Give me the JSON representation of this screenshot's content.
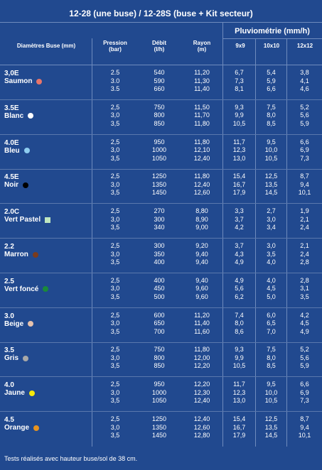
{
  "title": "12-28 (une buse) / 12-28S (buse + Kit secteur)",
  "headers": {
    "diametres": "Diamètres Buse (mm)",
    "pression": "Pression",
    "pression_unit": "(bar)",
    "debit": "Débit",
    "debit_unit": "(l/h)",
    "rayon": "Rayon",
    "rayon_unit": "(m)",
    "pluviometrie": "Pluviométrie (mm/h)",
    "p9": "9x9",
    "p10": "10x10",
    "p12": "12x12"
  },
  "rows": [
    {
      "size": "3,0E",
      "name": "Saumon",
      "color": "#e8756a",
      "shape": "dot",
      "pression": [
        "2.5",
        "3.0",
        "3.5"
      ],
      "debit": [
        "540",
        "590",
        "660"
      ],
      "rayon": [
        "11,20",
        "11,30",
        "11,40"
      ],
      "p9": [
        "6,7",
        "7,3",
        "8,1"
      ],
      "p10": [
        "5,4",
        "5,9",
        "6,6"
      ],
      "p12": [
        "3,8",
        "4,1",
        "4,6"
      ]
    },
    {
      "size": "3.5E",
      "name": "Blanc",
      "color": "#ffffff",
      "shape": "dot",
      "pression": [
        "2,5",
        "3,0",
        "3,5"
      ],
      "debit": [
        "750",
        "800",
        "850"
      ],
      "rayon": [
        "11,50",
        "11,70",
        "11,80"
      ],
      "p9": [
        "9,3",
        "9,9",
        "10,5"
      ],
      "p10": [
        "7,5",
        "8,0",
        "8,5"
      ],
      "p12": [
        "5,2",
        "5,6",
        "5,9"
      ]
    },
    {
      "size": "4.0E",
      "name": "Bleu",
      "color": "#8ecdf0",
      "shape": "dot",
      "pression": [
        "2,5",
        "3,0",
        "3,5"
      ],
      "debit": [
        "950",
        "1000",
        "1050"
      ],
      "rayon": [
        "11,80",
        "12,10",
        "12,40"
      ],
      "p9": [
        "11,7",
        "12,3",
        "13,0"
      ],
      "p10": [
        "9,5",
        "10,0",
        "10,5"
      ],
      "p12": [
        "6,6",
        "6,9",
        "7,3"
      ]
    },
    {
      "size": "4.5E",
      "name": "Noir",
      "color": "#000000",
      "shape": "dot",
      "pression": [
        "2,5",
        "3,0",
        "3,5"
      ],
      "debit": [
        "1250",
        "1350",
        "1450"
      ],
      "rayon": [
        "11,80",
        "12,40",
        "12,60"
      ],
      "p9": [
        "15,4",
        "16,7",
        "17,9"
      ],
      "p10": [
        "12,5",
        "13,5",
        "14,5"
      ],
      "p12": [
        "8,7",
        "9,4",
        "10,1"
      ]
    },
    {
      "size": "2.0C",
      "name": "Vert Pastel",
      "color": "#bfe6bf",
      "shape": "square",
      "pression": [
        "2,5",
        "3,0",
        "3,5"
      ],
      "debit": [
        "270",
        "300",
        "340"
      ],
      "rayon": [
        "8,80",
        "8,90",
        "9,00"
      ],
      "p9": [
        "3,3",
        "3,7",
        "4,2"
      ],
      "p10": [
        "2,7",
        "3,0",
        "3,4"
      ],
      "p12": [
        "1,9",
        "2,1",
        "2,4"
      ]
    },
    {
      "size": "2.2",
      "name": "Marron",
      "color": "#7a3b1e",
      "shape": "dot",
      "pression": [
        "2,5",
        "3,0",
        "3,5"
      ],
      "debit": [
        "300",
        "350",
        "400"
      ],
      "rayon": [
        "9,20",
        "9,40",
        "9,40"
      ],
      "p9": [
        "3,7",
        "4,3",
        "4,9"
      ],
      "p10": [
        "3,0",
        "3,5",
        "4,0"
      ],
      "p12": [
        "2,1",
        "2,4",
        "2,8"
      ]
    },
    {
      "size": "2.5",
      "name": "Vert foncé",
      "color": "#1a8a3a",
      "shape": "dot",
      "pression": [
        "2,5",
        "3,0",
        "3,5"
      ],
      "debit": [
        "400",
        "450",
        "500"
      ],
      "rayon": [
        "9,40",
        "9,60",
        "9,60"
      ],
      "p9": [
        "4,9",
        "5,6",
        "6,2"
      ],
      "p10": [
        "4,0",
        "4,5",
        "5,0"
      ],
      "p12": [
        "2,8",
        "3,1",
        "3,5"
      ]
    },
    {
      "size": "3.0",
      "name": "Beige",
      "color": "#e6c2ae",
      "shape": "dot",
      "pression": [
        "2,5",
        "3,0",
        "3,5"
      ],
      "debit": [
        "600",
        "650",
        "700"
      ],
      "rayon": [
        "11,20",
        "11,40",
        "11,60"
      ],
      "p9": [
        "7,4",
        "8,0",
        "8,6"
      ],
      "p10": [
        "6,0",
        "6,5",
        "7,0"
      ],
      "p12": [
        "4,2",
        "4,5",
        "4,9"
      ]
    },
    {
      "size": "3.5",
      "name": "Gris",
      "color": "#a8a8a8",
      "shape": "dot",
      "pression": [
        "2,5",
        "3,0",
        "3,5"
      ],
      "debit": [
        "750",
        "800",
        "850"
      ],
      "rayon": [
        "11,80",
        "12,00",
        "12,20"
      ],
      "p9": [
        "9,3",
        "9,9",
        "10,5"
      ],
      "p10": [
        "7,5",
        "8,0",
        "8,5"
      ],
      "p12": [
        "5,2",
        "5,6",
        "5,9"
      ]
    },
    {
      "size": "4.0",
      "name": "Jaune",
      "color": "#f5e90a",
      "shape": "dot",
      "pression": [
        "2,5",
        "3,0",
        "3,5"
      ],
      "debit": [
        "950",
        "1000",
        "1050"
      ],
      "rayon": [
        "12,20",
        "12,30",
        "12,40"
      ],
      "p9": [
        "11,7",
        "12,3",
        "13,0"
      ],
      "p10": [
        "9,5",
        "10,0",
        "10,5"
      ],
      "p12": [
        "6,6",
        "6,9",
        "7,3"
      ]
    },
    {
      "size": "4.5",
      "name": "Orange",
      "color": "#e8931f",
      "shape": "dot",
      "pression": [
        "2,5",
        "3,0",
        "3,5"
      ],
      "debit": [
        "1250",
        "1350",
        "1450"
      ],
      "rayon": [
        "12,40",
        "12,60",
        "12,80"
      ],
      "p9": [
        "15,4",
        "16,7",
        "17,9"
      ],
      "p10": [
        "12,5",
        "13,5",
        "14,5"
      ],
      "p12": [
        "8,7",
        "9,4",
        "10,1"
      ]
    }
  ],
  "footnote": "Tests réalisés avec hauteur buse/sol de 38 cm."
}
